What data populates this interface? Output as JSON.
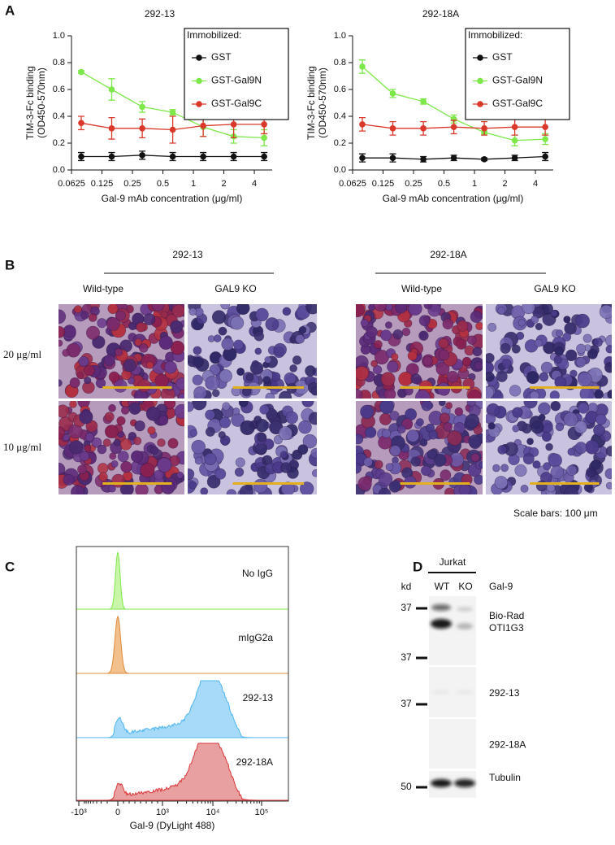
{
  "chart_data": [
    {
      "type": "line",
      "title": "292-13",
      "xlabel": "Gal-9 mAb concentration (μg/ml)",
      "ylabel": [
        "TIM-3-Fc binding",
        "(OD450-570nm)"
      ],
      "xscale": "log",
      "x": [
        0.078,
        0.156,
        0.3125,
        0.625,
        1.25,
        2.5,
        5
      ],
      "xlim": [
        0.0625,
        6
      ],
      "xticks": [
        0.0625,
        0.125,
        0.25,
        0.5,
        1,
        2,
        4
      ],
      "ylim": [
        0,
        1
      ],
      "yticks": [
        {
          "value": 0,
          "label": "0.0"
        },
        0.2,
        0.4,
        0.6,
        0.8,
        {
          "value": 1,
          "label": "1.0"
        }
      ],
      "legend": {
        "title": "Immobilized:",
        "position": "upper right"
      },
      "series": [
        {
          "name": "GST",
          "color": "#111111",
          "values": [
            0.1,
            0.1,
            0.11,
            0.1,
            0.1,
            0.1,
            0.1
          ],
          "errors": [
            0.03,
            0.03,
            0.03,
            0.03,
            0.03,
            0.03,
            0.03
          ]
        },
        {
          "name": "GST-Gal9N",
          "color": "#7ee84a",
          "values": [
            0.73,
            0.6,
            0.47,
            0.43,
            0.32,
            0.25,
            0.24
          ],
          "errors": [
            0.01,
            0.08,
            0.04,
            0.02,
            0.07,
            0.05,
            0.06
          ]
        },
        {
          "name": "GST-Gal9C",
          "color": "#d9382a",
          "values": [
            0.35,
            0.31,
            0.31,
            0.3,
            0.33,
            0.34,
            0.34
          ],
          "errors": [
            0.05,
            0.08,
            0.07,
            0.1,
            0.08,
            0.1,
            0.07
          ]
        }
      ]
    },
    {
      "type": "line",
      "title": "292-18A",
      "xlabel": "Gal-9 mAb concentration (μg/ml)",
      "ylabel": [
        "TIM-3-Fc binding",
        "(OD450-570nm)"
      ],
      "xscale": "log",
      "x": [
        0.078,
        0.156,
        0.3125,
        0.625,
        1.25,
        2.5,
        5
      ],
      "xlim": [
        0.0625,
        6
      ],
      "xticks": [
        0.0625,
        0.125,
        0.25,
        0.5,
        1,
        2,
        4
      ],
      "ylim": [
        0,
        1
      ],
      "yticks": [
        {
          "value": 0,
          "label": "0.0"
        },
        0.2,
        0.4,
        0.6,
        0.8,
        {
          "value": 1,
          "label": "1.0"
        }
      ],
      "legend": {
        "title": "Immobilized:",
        "position": "upper right"
      },
      "series": [
        {
          "name": "GST",
          "color": "#111111",
          "values": [
            0.09,
            0.09,
            0.08,
            0.09,
            0.08,
            0.09,
            0.1
          ],
          "errors": [
            0.03,
            0.03,
            0.02,
            0.02,
            0.01,
            0.02,
            0.03
          ]
        },
        {
          "name": "GST-Gal9N",
          "color": "#7ee84a",
          "values": [
            0.77,
            0.57,
            0.51,
            0.38,
            0.28,
            0.22,
            0.23
          ],
          "errors": [
            0.05,
            0.03,
            0.02,
            0.03,
            0.01,
            0.04,
            0.04
          ]
        },
        {
          "name": "GST-Gal9C",
          "color": "#d9382a",
          "values": [
            0.34,
            0.31,
            0.31,
            0.32,
            0.31,
            0.32,
            0.32
          ],
          "errors": [
            0.05,
            0.05,
            0.05,
            0.05,
            0.05,
            0.06,
            0.06
          ]
        }
      ]
    }
  ],
  "panel_a": {
    "label": "A"
  },
  "panel_b": {
    "label": "B",
    "groups": [
      {
        "title": "292-13",
        "columns": [
          "Wild-type",
          "GAL9 KO"
        ]
      },
      {
        "title": "292-18A",
        "columns": [
          "Wild-type",
          "GAL9 KO"
        ]
      }
    ],
    "rows": [
      "20 μg/ml",
      "10 μg/ml"
    ],
    "note": "Scale bars: 100 μm"
  },
  "panel_c": {
    "label": "C",
    "samples": [
      "No IgG",
      "mIgG2a",
      "292-13",
      "292-18A"
    ],
    "xlabel": "Gal-9 (DyLight 488)",
    "xticks": [
      "-10³",
      "0",
      "10³",
      "10⁴",
      "10⁵"
    ]
  },
  "panel_d": {
    "label": "D",
    "cell_line": "Jurkat",
    "lanes": [
      "WT",
      "KO"
    ],
    "kd_label": "kd",
    "target": "Gal-9",
    "blots": [
      {
        "marker": "37",
        "label": [
          "Bio-Rad",
          "OTI1G3"
        ]
      },
      {
        "marker": "37",
        "label": [
          "292-13"
        ]
      },
      {
        "marker": "37",
        "label": [
          "292-18A"
        ]
      },
      {
        "marker": "50",
        "label": [
          "Tubulin"
        ]
      }
    ]
  }
}
